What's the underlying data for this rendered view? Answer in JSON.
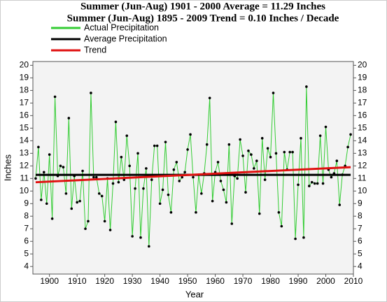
{
  "chart_data": {
    "type": "line",
    "title": "Summer (Jun-Aug) 1901 - 2000 Average = 11.29 Inches",
    "subtitle": "Summer (Jun-Aug) 1895 - 2009 Trend = 0.10 Inches / Decade",
    "x_label": "Year",
    "y_label": "Inches",
    "xlim": [
      1894,
      2010
    ],
    "xticks": [
      1900,
      1910,
      1920,
      1930,
      1940,
      1950,
      1960,
      1970,
      1980,
      1990,
      2000,
      2010
    ],
    "ylim": [
      3.4,
      20.3
    ],
    "yticks": [
      4,
      5,
      6,
      7,
      8,
      9,
      10,
      11,
      12,
      13,
      14,
      15,
      16,
      17,
      18,
      19,
      20
    ],
    "series": [
      {
        "name": "Actual Precipitation",
        "color": "#33cc33",
        "markers": true,
        "x": [
          1895,
          1896,
          1897,
          1898,
          1899,
          1900,
          1901,
          1902,
          1903,
          1904,
          1905,
          1906,
          1907,
          1908,
          1909,
          1910,
          1911,
          1912,
          1913,
          1914,
          1915,
          1916,
          1917,
          1918,
          1919,
          1920,
          1921,
          1922,
          1923,
          1924,
          1925,
          1926,
          1927,
          1928,
          1929,
          1930,
          1931,
          1932,
          1933,
          1934,
          1935,
          1936,
          1937,
          1938,
          1939,
          1940,
          1941,
          1942,
          1943,
          1944,
          1945,
          1946,
          1947,
          1948,
          1949,
          1950,
          1951,
          1952,
          1953,
          1954,
          1955,
          1956,
          1957,
          1958,
          1959,
          1960,
          1961,
          1962,
          1963,
          1964,
          1965,
          1966,
          1967,
          1968,
          1969,
          1970,
          1971,
          1972,
          1973,
          1974,
          1975,
          1976,
          1977,
          1978,
          1979,
          1980,
          1981,
          1982,
          1983,
          1984,
          1985,
          1986,
          1987,
          1988,
          1989,
          1990,
          1991,
          1992,
          1993,
          1994,
          1995,
          1996,
          1997,
          1998,
          1999,
          2000,
          2001,
          2002,
          2003,
          2004,
          2005,
          2006,
          2007,
          2008,
          2009
        ],
        "values": [
          11.0,
          13.5,
          9.3,
          11.5,
          9.0,
          12.9,
          7.8,
          17.5,
          11.2,
          12.0,
          11.9,
          9.8,
          15.8,
          8.6,
          11.2,
          9.1,
          9.2,
          11.6,
          7.0,
          7.6,
          17.8,
          11.1,
          11.1,
          9.8,
          9.6,
          7.6,
          11.0,
          6.9,
          10.6,
          15.5,
          10.7,
          12.7,
          10.9,
          14.4,
          12.0,
          6.4,
          10.2,
          13.0,
          6.3,
          10.2,
          11.8,
          5.6,
          10.9,
          13.6,
          13.6,
          9.0,
          10.1,
          13.9,
          9.7,
          8.3,
          11.7,
          12.3,
          10.8,
          11.1,
          11.5,
          13.3,
          14.5,
          11.1,
          8.3,
          11.3,
          9.8,
          11.4,
          13.7,
          17.4,
          9.2,
          11.5,
          12.3,
          10.8,
          10.1,
          9.1,
          13.7,
          7.4,
          11.2,
          11.0,
          14.1,
          12.8,
          9.9,
          13.2,
          12.9,
          11.8,
          12.4,
          8.2,
          14.2,
          10.9,
          13.4,
          12.7,
          17.8,
          13.0,
          8.3,
          7.2,
          13.1,
          11.7,
          13.1,
          13.1,
          6.2,
          10.5,
          14.2,
          6.3,
          18.3,
          10.4,
          10.7,
          10.6,
          10.6,
          14.4,
          10.6,
          15.1,
          11.7,
          11.1,
          11.4,
          12.4,
          8.9,
          11.3,
          12.0,
          13.5,
          14.5
        ]
      },
      {
        "name": "Average Precipitation",
        "color": "#000000",
        "markers": false,
        "x": [
          1895,
          2009
        ],
        "values": [
          11.29,
          11.29
        ]
      },
      {
        "name": "Trend",
        "color": "#e01010",
        "markers": false,
        "x": [
          1895,
          2009
        ],
        "values": [
          10.7,
          11.9
        ]
      }
    ]
  }
}
